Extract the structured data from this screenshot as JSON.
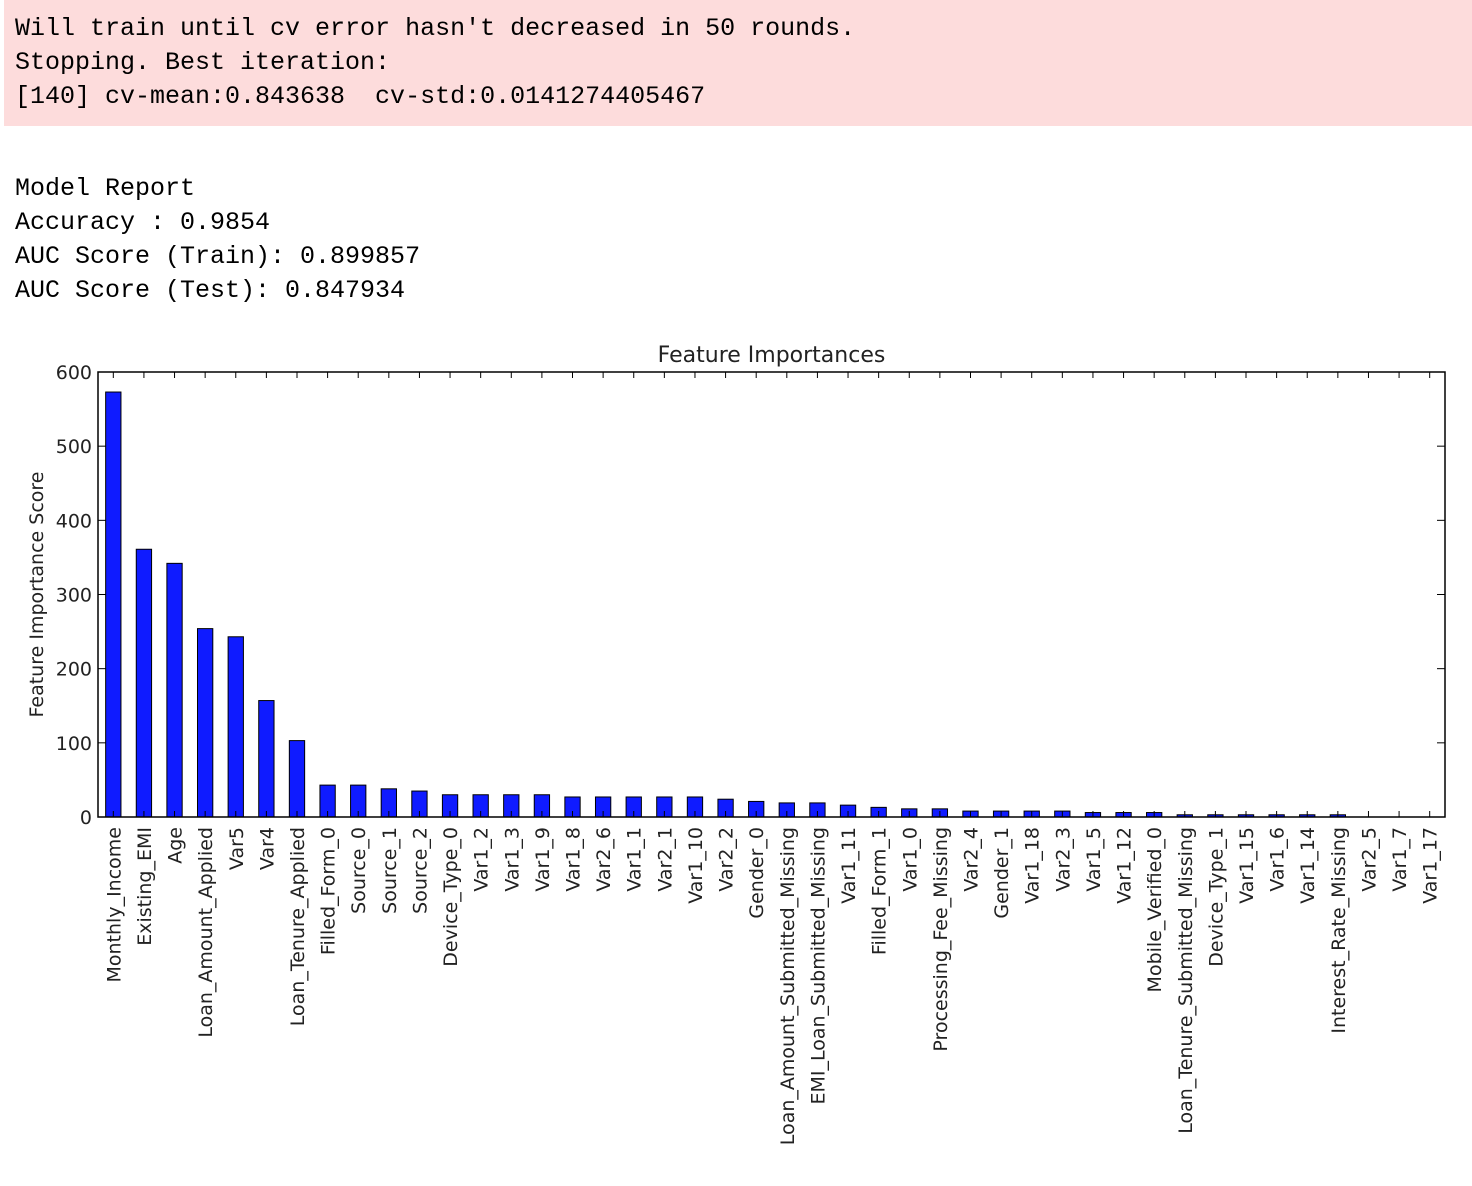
{
  "cv_log": {
    "line1": "Will train until cv error hasn't decreased in 50 rounds.",
    "line2": "Stopping. Best iteration:",
    "line3": "[140] cv-mean:0.843638  cv-std:0.0141274405467"
  },
  "report": {
    "title": "Model Report",
    "accuracy": "Accuracy : 0.9854",
    "auc_train": "AUC Score (Train): 0.899857",
    "auc_test": "AUC Score (Test): 0.847934"
  },
  "colors": {
    "stderr_bg": "#fddcdc",
    "bar": "#0f1bff"
  },
  "chart_data": {
    "type": "bar",
    "title": "Feature Importances",
    "xlabel": "",
    "ylabel": "Feature Importance Score",
    "ylim": [
      0,
      600
    ],
    "yticks": [
      0,
      100,
      200,
      300,
      400,
      500,
      600
    ],
    "grid": false,
    "categories": [
      "Monthly_Income",
      "Existing_EMI",
      "Age",
      "Loan_Amount_Applied",
      "Var5",
      "Var4",
      "Loan_Tenure_Applied",
      "Filled_Form_0",
      "Source_0",
      "Source_1",
      "Source_2",
      "Device_Type_0",
      "Var1_2",
      "Var1_3",
      "Var1_9",
      "Var1_8",
      "Var2_6",
      "Var1_1",
      "Var2_1",
      "Var1_10",
      "Var2_2",
      "Gender_0",
      "Loan_Amount_Submitted_Missing",
      "EMI_Loan_Submitted_Missing",
      "Var1_11",
      "Filled_Form_1",
      "Var1_0",
      "Processing_Fee_Missing",
      "Var2_4",
      "Gender_1",
      "Var1_18",
      "Var2_3",
      "Var1_5",
      "Var1_12",
      "Mobile_Verified_0",
      "Loan_Tenure_Submitted_Missing",
      "Device_Type_1",
      "Var1_15",
      "Var1_6",
      "Var1_14",
      "Interest_Rate_Missing",
      "Var2_5",
      "Var1_7",
      "Var1_17"
    ],
    "values": [
      573,
      361,
      342,
      254,
      243,
      157,
      103,
      43,
      43,
      38,
      35,
      30,
      30,
      30,
      30,
      27,
      27,
      27,
      27,
      27,
      24,
      21,
      19,
      19,
      16,
      13,
      11,
      11,
      8,
      8,
      8,
      8,
      6,
      6,
      6,
      3,
      3,
      3,
      3,
      3,
      3,
      0,
      0,
      0
    ]
  }
}
